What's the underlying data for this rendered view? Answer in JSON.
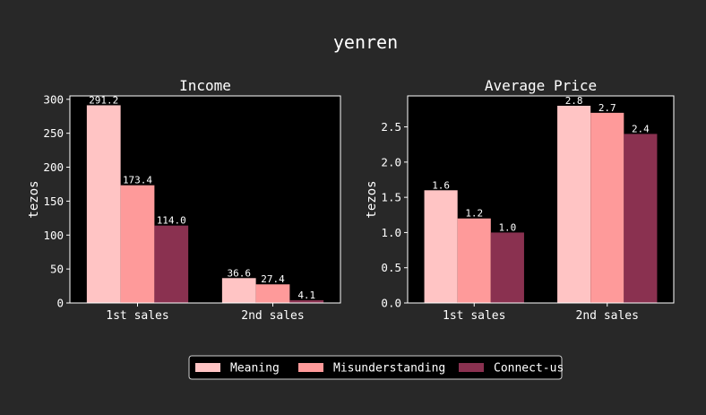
{
  "title": "yenren",
  "colors": {
    "background": "#282828",
    "plot_background": "#000000",
    "text": "#ffffff"
  },
  "legend": {
    "placement": "bottom-center",
    "entries": [
      {
        "label": "Meaning",
        "color": "#ffc4c4"
      },
      {
        "label": "Misunderstanding",
        "color": "#fe9a9a"
      },
      {
        "label": "Connect-us",
        "color": "#8a3150"
      }
    ]
  },
  "chart_data": [
    {
      "type": "bar",
      "title": "Income",
      "xlabel": "",
      "ylabel": "tezos",
      "ylim": [
        0,
        305
      ],
      "yticks": [
        0,
        50,
        100,
        150,
        200,
        250,
        300
      ],
      "ytick_labels": [
        "0",
        "50",
        "100",
        "150",
        "200",
        "250",
        "300"
      ],
      "categories": [
        "1st sales",
        "2nd sales"
      ],
      "series": [
        {
          "name": "Meaning",
          "values": [
            291.2,
            36.6
          ],
          "labels": [
            "291.2",
            "36.6"
          ]
        },
        {
          "name": "Misunderstanding",
          "values": [
            173.4,
            27.4
          ],
          "labels": [
            "173.4",
            "27.4"
          ]
        },
        {
          "name": "Connect-us",
          "values": [
            114.0,
            4.1
          ],
          "labels": [
            "114.0",
            "4.1"
          ]
        }
      ],
      "grid": false
    },
    {
      "type": "bar",
      "title": "Average Price",
      "xlabel": "",
      "ylabel": "tezos",
      "ylim": [
        0,
        2.94
      ],
      "yticks": [
        0,
        0.5,
        1.0,
        1.5,
        2.0,
        2.5
      ],
      "ytick_labels": [
        "0.0",
        "0.5",
        "1.0",
        "1.5",
        "2.0",
        "2.5"
      ],
      "categories": [
        "1st sales",
        "2nd sales"
      ],
      "series": [
        {
          "name": "Meaning",
          "values": [
            1.6,
            2.8
          ],
          "labels": [
            "1.6",
            "2.8"
          ]
        },
        {
          "name": "Misunderstanding",
          "values": [
            1.2,
            2.7
          ],
          "labels": [
            "1.2",
            "2.7"
          ]
        },
        {
          "name": "Connect-us",
          "values": [
            1.0,
            2.4
          ],
          "labels": [
            "1.0",
            "2.4"
          ]
        }
      ],
      "grid": false
    }
  ]
}
